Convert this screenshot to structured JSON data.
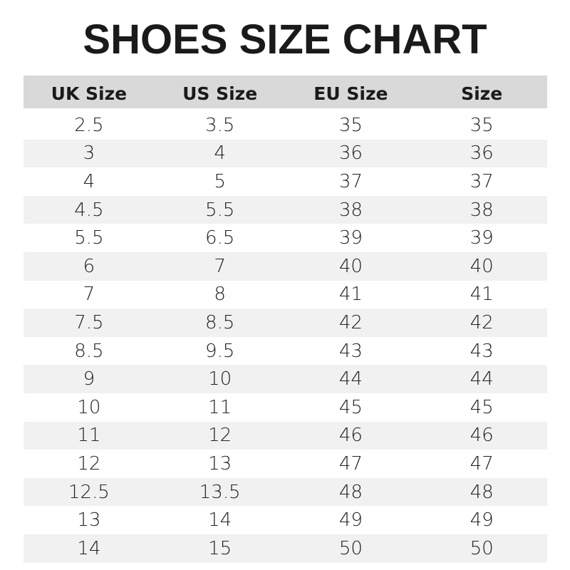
{
  "title": "SHOES SIZE CHART",
  "colors": {
    "header_bg": "#d9d9d9",
    "stripe_bg": "#f1f1f1",
    "text": "#1a1a1a"
  },
  "table": {
    "headers": [
      "UK Size",
      "US Size",
      "EU Size",
      "Size"
    ],
    "rows": [
      [
        "2.5",
        "3.5",
        "35",
        "35"
      ],
      [
        "3",
        "4",
        "36",
        "36"
      ],
      [
        "4",
        "5",
        "37",
        "37"
      ],
      [
        "4.5",
        "5.5",
        "38",
        "38"
      ],
      [
        "5.5",
        "6.5",
        "39",
        "39"
      ],
      [
        "6",
        "7",
        "40",
        "40"
      ],
      [
        "7",
        "8",
        "41",
        "41"
      ],
      [
        "7.5",
        "8.5",
        "42",
        "42"
      ],
      [
        "8.5",
        "9.5",
        "43",
        "43"
      ],
      [
        "9",
        "10",
        "44",
        "44"
      ],
      [
        "10",
        "11",
        "45",
        "45"
      ],
      [
        "11",
        "12",
        "46",
        "46"
      ],
      [
        "12",
        "13",
        "47",
        "47"
      ],
      [
        "12.5",
        "13.5",
        "48",
        "48"
      ],
      [
        "13",
        "14",
        "49",
        "49"
      ],
      [
        "14",
        "15",
        "50",
        "50"
      ]
    ]
  }
}
